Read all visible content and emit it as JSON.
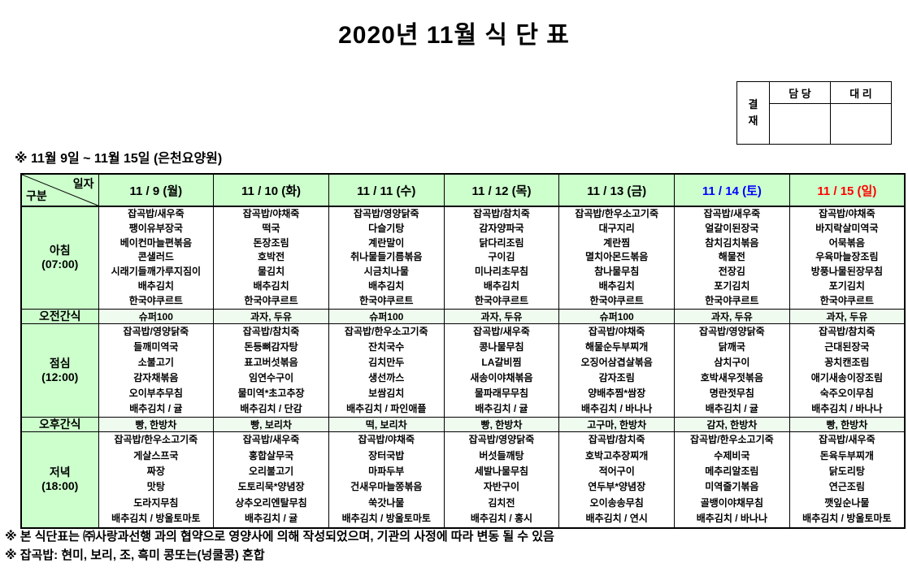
{
  "title": "2020년 11월 식 단 표",
  "approval": {
    "stamp_label": "결재",
    "columns": [
      "담 당",
      "대 리"
    ]
  },
  "subtitle": "※  11월  9일  ~  11월  15일  (은천요양원)",
  "colors": {
    "header_bg": "#ccffcc",
    "snack_bg": "#effbef",
    "weekday": "#000000",
    "saturday": "#0000ff",
    "sunday": "#ff0000"
  },
  "table": {
    "corner_top": "일자",
    "corner_bottom": "구분",
    "days": [
      {
        "label": "11 / 9 (월)",
        "color": "#000000"
      },
      {
        "label": "11 / 10 (화)",
        "color": "#000000"
      },
      {
        "label": "11 / 11 (수)",
        "color": "#000000"
      },
      {
        "label": "11 / 12 (목)",
        "color": "#000000"
      },
      {
        "label": "11 / 13 (금)",
        "color": "#000000"
      },
      {
        "label": "11 / 14 (토)",
        "color": "#0000ff"
      },
      {
        "label": "11 / 15 (일)",
        "color": "#ff0000"
      }
    ],
    "rows": [
      {
        "key": "breakfast",
        "type": "meal-breakfast",
        "label": "아침",
        "sub": "(07:00)",
        "cells": [
          [
            "잡곡밥/새우죽",
            "팽이유부장국",
            "베이컨마늘편볶음",
            "콘샐러드",
            "시래기들깨가루지짐이",
            "배추김치",
            "한국야쿠르트"
          ],
          [
            "잡곡밥/야채죽",
            "떡국",
            "돈장조림",
            "호박전",
            "물김치",
            "배추김치",
            "한국야쿠르트"
          ],
          [
            "잡곡밥/영양닭죽",
            "다슬기탕",
            "계란말이",
            "취나물들기름볶음",
            "시금치나물",
            "배추김치",
            "한국야쿠르트"
          ],
          [
            "잡곡밥/참치죽",
            "감자양파국",
            "닭다리조림",
            "구이김",
            "미나리초무침",
            "배추김치",
            "한국야쿠르트"
          ],
          [
            "잡곡밥/한우소고기죽",
            "대구지리",
            "계란찜",
            "멸치아몬드볶음",
            "참나물무침",
            "배추김치",
            "한국야쿠르트"
          ],
          [
            "잡곡밥/새우죽",
            "얼갈이된장국",
            "참치김치볶음",
            "해물전",
            "전장김",
            "포기김치",
            "한국야쿠르트"
          ],
          [
            "잡곡밥/야채죽",
            "바지락살미역국",
            "어묵볶음",
            "우육마늘장조림",
            "방풍나물된장무침",
            "포기김치",
            "한국야쿠르트"
          ]
        ]
      },
      {
        "key": "am-snack",
        "type": "snack",
        "label": "오전간식",
        "sub": "",
        "cells": [
          "슈퍼100",
          "과자, 두유",
          "슈퍼100",
          "과자, 두유",
          "슈퍼100",
          "과자, 두유",
          "과자, 두유"
        ]
      },
      {
        "key": "lunch",
        "type": "meal-lunch",
        "label": "점심",
        "sub": "(12:00)",
        "cells": [
          [
            "잡곡밥/영양닭죽",
            "들깨미역국",
            "소불고기",
            "감자채볶음",
            "오이부추무침",
            "배추김치 / 귤"
          ],
          [
            "잡곡밥/참치죽",
            "돈등뼈감자탕",
            "표고버섯볶음",
            "임연수구이",
            "물미역*초고추장",
            "배추김치 / 단감"
          ],
          [
            "잡곡밥/한우소고기죽",
            "잔치국수",
            "김치만두",
            "생선까스",
            "보쌈김치",
            "배추김치 / 파인애플"
          ],
          [
            "잡곡밥/새우죽",
            "콩나물무침",
            "LA갈비찜",
            "새송이야채볶음",
            "물파래무무침",
            "배추김치 / 귤"
          ],
          [
            "잡곡밥/야채죽",
            "해물순두부찌개",
            "오징어삼겹살볶음",
            "감자조림",
            "양배추찜*쌈장",
            "배추김치 / 바나나"
          ],
          [
            "잡곡밥/영양닭죽",
            "닭깨국",
            "삼치구이",
            "호박새우젓볶음",
            "명란젓무침",
            "배추김치 / 귤"
          ],
          [
            "잡곡밥/참치죽",
            "근대된장국",
            "꽁치캔조림",
            "애기새송이장조림",
            "숙주오이무침",
            "배추김치 / 바나나"
          ]
        ]
      },
      {
        "key": "pm-snack",
        "type": "snack",
        "label": "오후간식",
        "sub": "",
        "cells": [
          "빵, 한방차",
          "빵, 보리차",
          "떡, 보리차",
          "빵, 한방차",
          "고구마, 한방차",
          "감자, 한방차",
          "빵, 한방차"
        ]
      },
      {
        "key": "dinner",
        "type": "meal-dinner",
        "label": "저녁",
        "sub": "(18:00)",
        "cells": [
          [
            "잡곡밥/한우소고기죽",
            "게살스프국",
            "짜장",
            "맛탕",
            "도라지무침",
            "배추김치 / 방울토마토"
          ],
          [
            "잡곡밥/새우죽",
            "홍합살무국",
            "오리불고기",
            "도토리묵*양념장",
            "상추오리엔탈무침",
            "배추김치 / 귤"
          ],
          [
            "잡곡밥/야채죽",
            "장터국밥",
            "마파두부",
            "건새우마늘쫑볶음",
            "쑥갓나물",
            "배추김치 / 방울토마토"
          ],
          [
            "잡곡밥/영양닭죽",
            "버섯들깨탕",
            "세발나물무침",
            "자반구이",
            "김치전",
            "배추김치 / 홍시"
          ],
          [
            "잡곡밥/참치죽",
            "호박고추장찌개",
            "적어구이",
            "연두부*양념장",
            "오이송송무침",
            "배추김치 / 연시"
          ],
          [
            "잡곡밥/한우소고기죽",
            "수제비국",
            "메추리알조림",
            "미역줄기볶음",
            "골뱅이야채무침",
            "배추김치 / 바나나"
          ],
          [
            "잡곡밥/새우죽",
            "돈육두부찌개",
            "닭도리탕",
            "연근조림",
            "깻잎순나물",
            "배추김치 / 방울토마토"
          ]
        ]
      }
    ]
  },
  "notes": [
    "※ 본 식단표는 ㈜사랑과선행 과의 협약으로 영양사에 의해 작성되었으며, 기관의 사정에 따라 변동 될 수 있음",
    "※ 잡곡밥: 현미, 보리, 조, 흑미 콩또는(넝쿨콩) 혼합"
  ]
}
